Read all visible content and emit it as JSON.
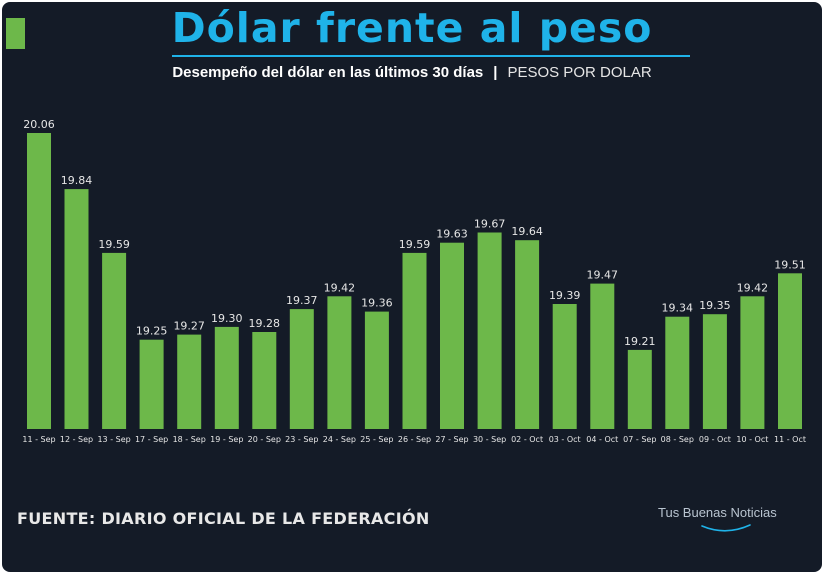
{
  "header": {
    "title": "Dólar frente al peso",
    "subtitle": "Desempeño del dólar en las últimos 30 días",
    "separator": "|",
    "unit": "PESOS POR DOLAR"
  },
  "footer": {
    "source": "FUENTE: DIARIO OFICIAL DE LA FEDERACIÓN",
    "brand": "Tus Buenas Noticias"
  },
  "colors": {
    "background": "#141b27",
    "bar": "#6db84a",
    "title": "#1fb3e9",
    "label": "#ffffff"
  },
  "chart_data": {
    "type": "bar",
    "title": "",
    "xlabel": "",
    "ylabel": "",
    "categories": [
      "11 - Sep",
      "12 - Sep",
      "13 - Sep",
      "17 - Sep",
      "18 - Sep",
      "19 - Sep",
      "20 - Sep",
      "23 - Sep",
      "24 - Sep",
      "25 - Sep",
      "26 - Sep",
      "27 - Sep",
      "30 - Sep",
      "02 - Oct",
      "03 - Oct",
      "04 - Oct",
      "07 - Sep",
      "08 - Sep",
      "09 - Oct",
      "10 - Oct",
      "11 - Oct"
    ],
    "values": [
      20.06,
      19.84,
      19.59,
      19.25,
      19.27,
      19.3,
      19.28,
      19.37,
      19.42,
      19.36,
      19.59,
      19.63,
      19.67,
      19.64,
      19.39,
      19.47,
      19.21,
      19.34,
      19.35,
      19.42,
      19.51
    ],
    "value_labels": [
      "20.06",
      "19.84",
      "19.59",
      "19.25",
      "19.27",
      "19.30",
      "19.28",
      "19.37",
      "19.42",
      "19.36",
      "19.59",
      "19.63",
      "19.67",
      "19.64",
      "19.39",
      "19.47",
      "19.21",
      "19.34",
      "19.35",
      "19.42",
      "19.51"
    ],
    "grid": false,
    "legend": "none"
  }
}
